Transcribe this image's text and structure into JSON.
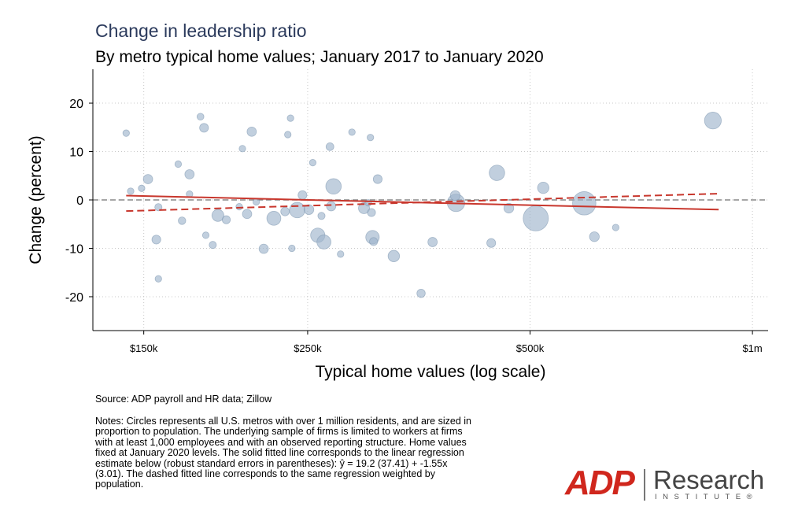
{
  "header": {
    "title": "Change in leadership ratio",
    "subtitle": "By metro typical home values; January 2017 to January 2020"
  },
  "chart_data": {
    "type": "scatter",
    "xlabel": "Typical home values (log scale)",
    "ylabel": "Change (percent)",
    "xscale": "log",
    "xlim": [
      128000,
      1050000
    ],
    "ylim": [
      -27,
      27
    ],
    "x_ticks": [
      {
        "value": 150000,
        "label": "$150k"
      },
      {
        "value": 250000,
        "label": "$250k"
      },
      {
        "value": 500000,
        "label": "$500k"
      },
      {
        "value": 1000000,
        "label": "$1m"
      }
    ],
    "y_ticks": [
      {
        "value": 20,
        "label": "20"
      },
      {
        "value": 10,
        "label": "10"
      },
      {
        "value": 0,
        "label": "0"
      },
      {
        "value": -10,
        "label": "-10"
      },
      {
        "value": -20,
        "label": "-20"
      }
    ],
    "grid": true,
    "reference_line_y": 0,
    "point_color": "#9fb6cc",
    "line_color": "#c8372d",
    "points": [
      {
        "x": 142000,
        "y": 13.8,
        "size": 1.0
      },
      {
        "x": 144000,
        "y": 1.8,
        "size": 1.0
      },
      {
        "x": 149000,
        "y": 2.4,
        "size": 1.0
      },
      {
        "x": 152000,
        "y": 4.3,
        "size": 2.0
      },
      {
        "x": 156000,
        "y": -8.2,
        "size": 1.8
      },
      {
        "x": 157000,
        "y": -1.5,
        "size": 1.2
      },
      {
        "x": 157000,
        "y": -16.3,
        "size": 1.0
      },
      {
        "x": 167000,
        "y": 7.4,
        "size": 1.0
      },
      {
        "x": 169000,
        "y": -4.3,
        "size": 1.3
      },
      {
        "x": 173000,
        "y": 5.3,
        "size": 2.0
      },
      {
        "x": 173000,
        "y": 1.2,
        "size": 1.0
      },
      {
        "x": 179000,
        "y": 17.2,
        "size": 1.1
      },
      {
        "x": 181000,
        "y": 14.9,
        "size": 1.8
      },
      {
        "x": 182000,
        "y": -7.3,
        "size": 1.0
      },
      {
        "x": 186000,
        "y": -9.3,
        "size": 1.2
      },
      {
        "x": 189000,
        "y": -3.2,
        "size": 3.3
      },
      {
        "x": 194000,
        "y": -4.1,
        "size": 1.5
      },
      {
        "x": 202000,
        "y": -1.4,
        "size": 1.0
      },
      {
        "x": 204000,
        "y": 10.6,
        "size": 1.0
      },
      {
        "x": 207000,
        "y": -2.9,
        "size": 2.0
      },
      {
        "x": 210000,
        "y": 14.1,
        "size": 2.0
      },
      {
        "x": 213000,
        "y": -0.4,
        "size": 1.0
      },
      {
        "x": 218000,
        "y": -10.1,
        "size": 2.0
      },
      {
        "x": 225000,
        "y": -3.8,
        "size": 4.5
      },
      {
        "x": 233000,
        "y": -2.4,
        "size": 1.7
      },
      {
        "x": 235000,
        "y": 13.5,
        "size": 1.0
      },
      {
        "x": 237000,
        "y": 16.9,
        "size": 1.0
      },
      {
        "x": 238000,
        "y": -10.0,
        "size": 1.0
      },
      {
        "x": 242000,
        "y": -2.1,
        "size": 5.5
      },
      {
        "x": 246000,
        "y": 1.0,
        "size": 1.8
      },
      {
        "x": 251000,
        "y": -2.0,
        "size": 2.2
      },
      {
        "x": 254000,
        "y": 7.7,
        "size": 1.0
      },
      {
        "x": 258000,
        "y": -7.3,
        "size": 4.7
      },
      {
        "x": 261000,
        "y": -3.3,
        "size": 1.2
      },
      {
        "x": 263000,
        "y": -8.7,
        "size": 4.5
      },
      {
        "x": 268000,
        "y": 11.0,
        "size": 1.4
      },
      {
        "x": 269000,
        "y": -1.3,
        "size": 2.0
      },
      {
        "x": 271000,
        "y": 2.8,
        "size": 5.5
      },
      {
        "x": 277000,
        "y": -11.2,
        "size": 1.0
      },
      {
        "x": 287000,
        "y": 14.0,
        "size": 1.0
      },
      {
        "x": 298000,
        "y": -1.7,
        "size": 2.8
      },
      {
        "x": 302000,
        "y": -0.6,
        "size": 1.0
      },
      {
        "x": 304000,
        "y": 12.9,
        "size": 1.0
      },
      {
        "x": 305000,
        "y": -2.6,
        "size": 1.5
      },
      {
        "x": 306000,
        "y": -7.7,
        "size": 4.2
      },
      {
        "x": 307000,
        "y": -8.6,
        "size": 1.5
      },
      {
        "x": 311000,
        "y": 4.3,
        "size": 1.8
      },
      {
        "x": 327000,
        "y": -11.6,
        "size": 3.0
      },
      {
        "x": 356000,
        "y": -19.3,
        "size": 1.6
      },
      {
        "x": 369000,
        "y": -8.7,
        "size": 2.0
      },
      {
        "x": 396000,
        "y": 0.9,
        "size": 2.2
      },
      {
        "x": 397000,
        "y": -0.6,
        "size": 7.0
      },
      {
        "x": 443000,
        "y": -8.9,
        "size": 1.8
      },
      {
        "x": 451000,
        "y": 5.6,
        "size": 5.5
      },
      {
        "x": 468000,
        "y": -1.7,
        "size": 2.2
      },
      {
        "x": 509000,
        "y": -3.8,
        "size": 14.5
      },
      {
        "x": 521000,
        "y": 2.5,
        "size": 3.0
      },
      {
        "x": 592000,
        "y": -0.7,
        "size": 12.5
      },
      {
        "x": 611000,
        "y": -7.6,
        "size": 2.2
      },
      {
        "x": 653000,
        "y": -5.7,
        "size": 1.0
      },
      {
        "x": 884000,
        "y": 16.4,
        "size": 6.5
      }
    ],
    "fit_lines": [
      {
        "style": "solid",
        "x": [
          142000,
          900000
        ],
        "y": [
          0.9,
          -2.0
        ]
      },
      {
        "style": "dashed",
        "x": [
          142000,
          900000
        ],
        "y": [
          -2.3,
          1.3
        ]
      }
    ]
  },
  "footer": {
    "source": "Source: ADP payroll and HR data; Zillow",
    "notes": "Notes: Circles represents all U.S. metros with over 1 million residents, and are sized in proportion to population. The underlying sample of firms is limited to workers at firms with at least 1,000 employees and with an observed reporting structure. Home values fixed at January 2020 levels. The solid fitted line corresponds to the linear regression estimate below (robust standard errors in parentheses): ŷ = 19.2 (37.41) + -1.55x (3.01). The dashed fitted line corresponds to the same regression weighted by population."
  },
  "logo": {
    "brand": "ADP",
    "research": "Research",
    "institute": "INSTITUTE",
    "trademark": "®"
  },
  "colors": {
    "title": "#2b3a5c",
    "logo_red": "#d0271d",
    "logo_gray": "#444444"
  }
}
